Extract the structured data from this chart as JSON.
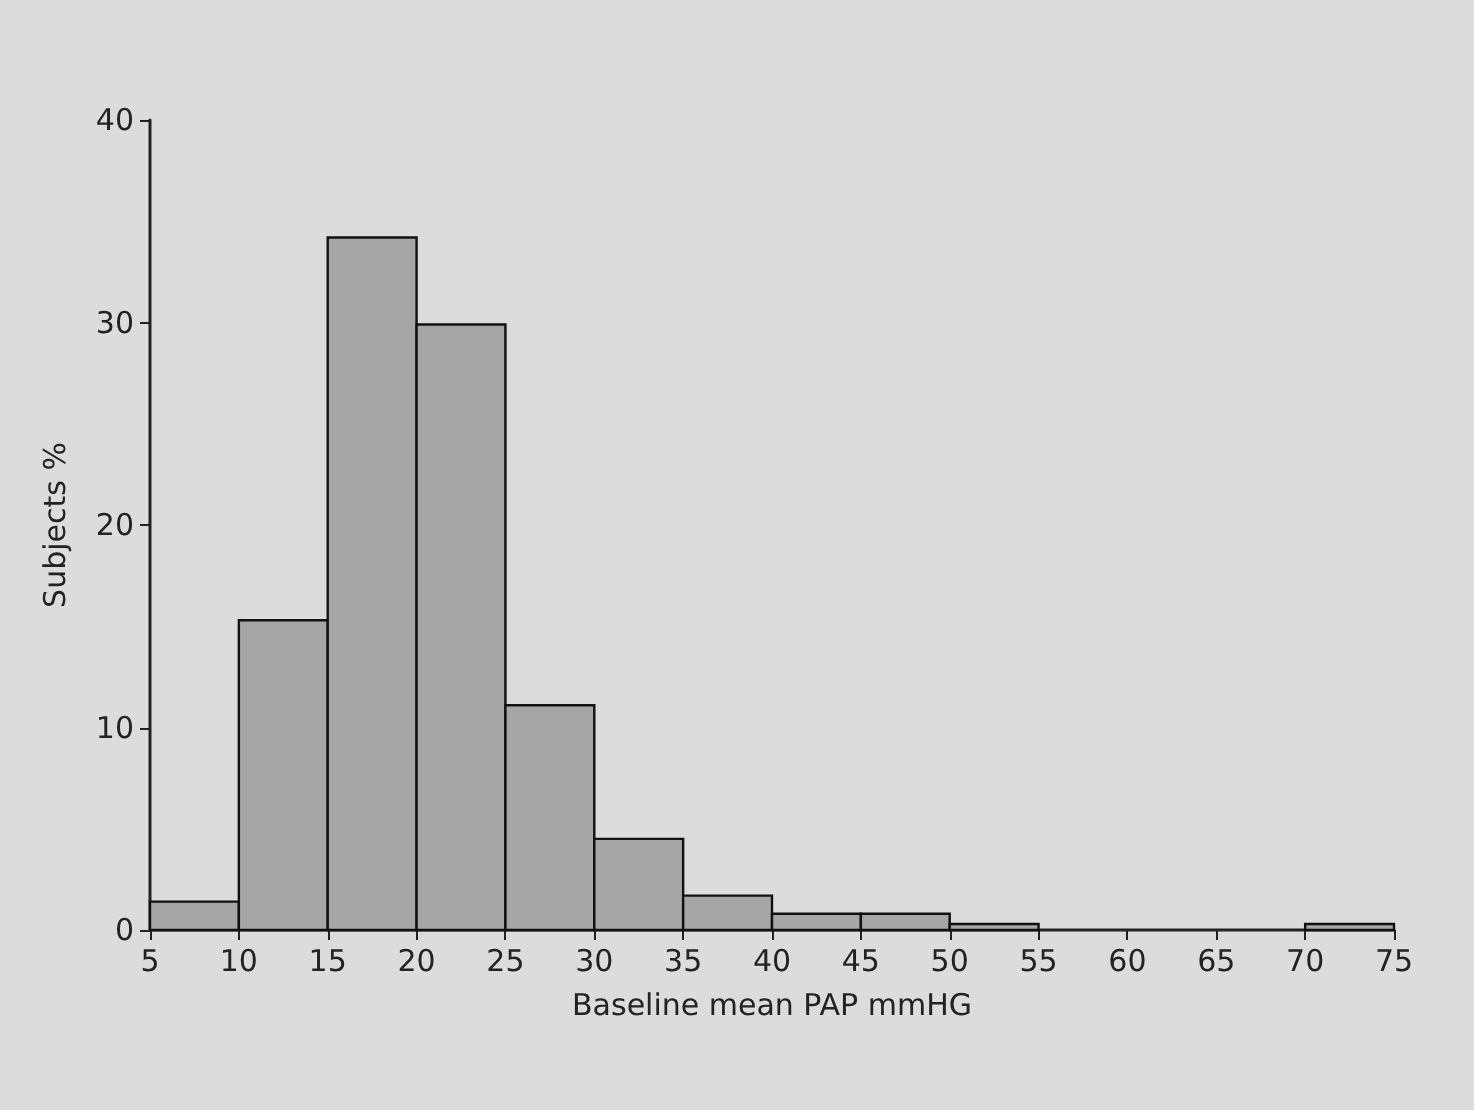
{
  "chart_data": {
    "type": "histogram",
    "xlabel": "Baseline mean PAP mmHG",
    "ylabel": "Subjects %",
    "bins": [
      5,
      10,
      15,
      20,
      25,
      30,
      35,
      40,
      45,
      50,
      55,
      60,
      65,
      70,
      75
    ],
    "values": [
      1.4,
      15.3,
      34.2,
      29.9,
      11.1,
      4.5,
      1.7,
      0.8,
      0.8,
      0.3,
      0,
      0,
      0,
      0.3
    ],
    "color": "#a6a6a6",
    "xlim": [
      5,
      75
    ],
    "xticks": [
      5,
      10,
      15,
      20,
      25,
      30,
      35,
      40,
      45,
      50,
      55,
      60,
      65,
      70,
      75
    ],
    "ylim": [
      0,
      40
    ],
    "yticks": [
      0,
      10,
      20,
      30,
      40
    ],
    "grid": false
  }
}
